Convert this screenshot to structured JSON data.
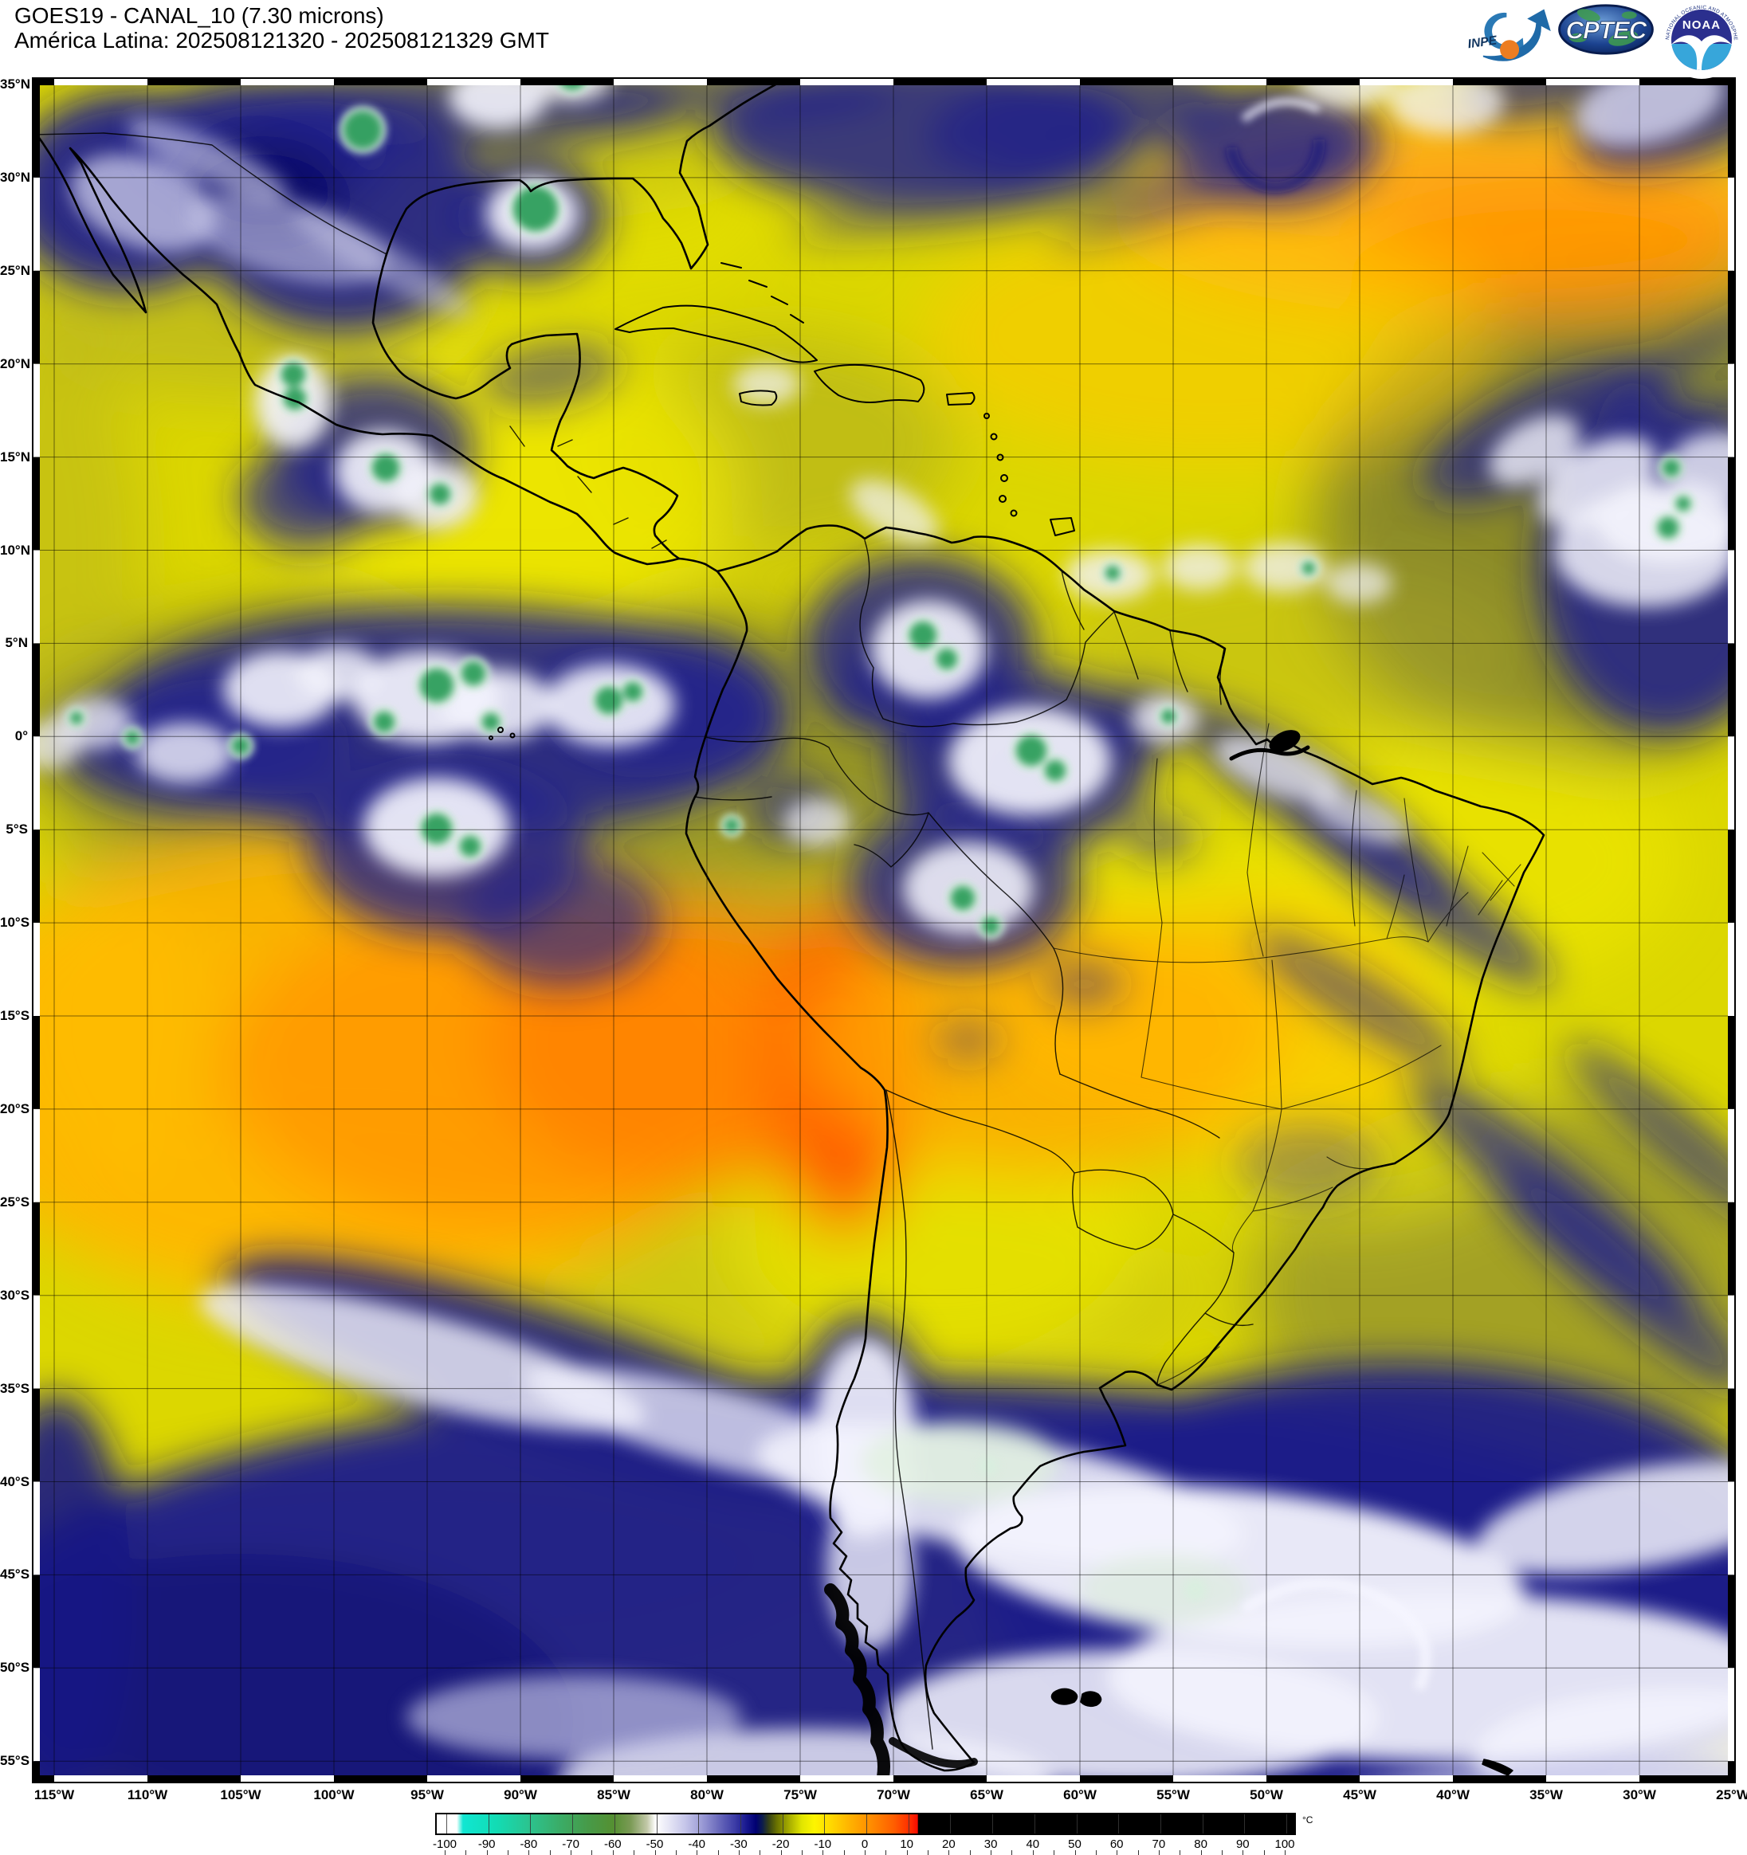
{
  "header": {
    "line1": "GOES19 - CANAL_10 (7.30 microns)",
    "line2": "América Latina: 202508121320 - 202508121329 GMT"
  },
  "logos": {
    "inpe_label": "INPE",
    "cptec_label": "CPTEC",
    "noaa_label": "NOAA",
    "noaa_ring_top": "NATIONAL OCEANIC AND ATMOSPHERIC ADMINISTRATION",
    "noaa_ring_bottom": "U.S. DEPARTMENT OF COMMERCE"
  },
  "map": {
    "projection_grid": {
      "lat_start": "35N",
      "lat_end": "55S",
      "lon_start": "115W",
      "lon_end": "25W",
      "step_deg": 5
    },
    "lat_labels": [
      "35°N",
      "30°N",
      "25°N",
      "20°N",
      "15°N",
      "10°N",
      "5°N",
      "0°",
      "5°S",
      "10°S",
      "15°S",
      "20°S",
      "25°S",
      "30°S",
      "35°S",
      "40°S",
      "45°S",
      "50°S",
      "55°S"
    ],
    "lon_labels": [
      "115°W",
      "110°W",
      "105°W",
      "100°W",
      "95°W",
      "90°W",
      "85°W",
      "80°W",
      "75°W",
      "70°W",
      "65°W",
      "60°W",
      "55°W",
      "50°W",
      "45°W",
      "40°W",
      "35°W",
      "30°W",
      "25°W"
    ]
  },
  "colorbar": {
    "unit": "°C",
    "tick_values": [
      -100,
      -90,
      -80,
      -70,
      -60,
      -50,
      -40,
      -30,
      -20,
      -10,
      0,
      10,
      20,
      30,
      40,
      50,
      60,
      70,
      80,
      90,
      100
    ],
    "tick_labels": [
      "-100",
      "-90",
      "-80",
      "-70",
      "-60",
      "-50",
      "-40",
      "-30",
      "-20",
      "-10",
      "0",
      "10",
      "20",
      "30",
      "40",
      "50",
      "60",
      "70",
      "80",
      "90",
      "100"
    ],
    "minor_tick_step": 5,
    "range": [
      -102,
      103
    ],
    "stops": [
      {
        "v": -101,
        "c": "#ffffff"
      },
      {
        "v": -97.5,
        "c": "#ffffff"
      },
      {
        "v": -96,
        "c": "#10e6d2"
      },
      {
        "v": -88,
        "c": "#12dcb4"
      },
      {
        "v": -80,
        "c": "#2cc38e"
      },
      {
        "v": -73,
        "c": "#3aad68"
      },
      {
        "v": -66,
        "c": "#479a48"
      },
      {
        "v": -60,
        "c": "#559032"
      },
      {
        "v": -56,
        "c": "#7a9a55"
      },
      {
        "v": -52,
        "c": "#c2c8a8"
      },
      {
        "v": -50,
        "c": "#ffffff"
      },
      {
        "v": -47,
        "c": "#e8e8f6"
      },
      {
        "v": -43,
        "c": "#c6c6ea"
      },
      {
        "v": -39,
        "c": "#9c9cd6"
      },
      {
        "v": -35,
        "c": "#6b6bbc"
      },
      {
        "v": -31,
        "c": "#3c3ca6"
      },
      {
        "v": -28,
        "c": "#15158c"
      },
      {
        "v": -26,
        "c": "#000072"
      },
      {
        "v": -24.5,
        "c": "#0b1b4e"
      },
      {
        "v": -23,
        "c": "#333f18"
      },
      {
        "v": -21,
        "c": "#6a7200"
      },
      {
        "v": -18,
        "c": "#a8ae00"
      },
      {
        "v": -15,
        "c": "#e2e600"
      },
      {
        "v": -12,
        "c": "#fdf500"
      },
      {
        "v": -8,
        "c": "#ffd800"
      },
      {
        "v": -3,
        "c": "#ffae00"
      },
      {
        "v": 2,
        "c": "#ff8800"
      },
      {
        "v": 7,
        "c": "#ff5e00"
      },
      {
        "v": 11,
        "c": "#ff2a00"
      },
      {
        "v": 12.6,
        "c": "#f50c00"
      },
      {
        "v": 12.8,
        "c": "#000000"
      },
      {
        "v": 102,
        "c": "#000000"
      }
    ]
  }
}
